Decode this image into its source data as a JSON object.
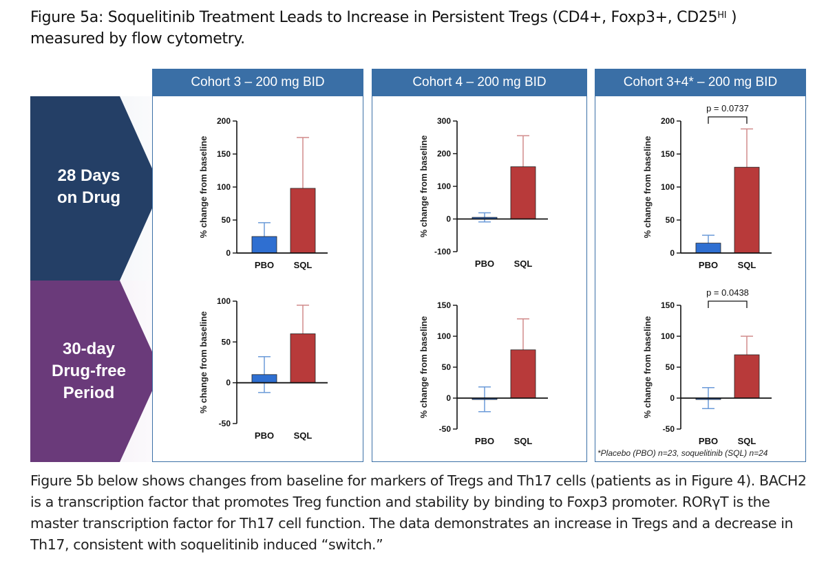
{
  "figure": {
    "title_main": "Figure 5a: Soquelitinib Treatment Leads to Increase in Persistent Tregs (CD4+, Foxp3+, CD25",
    "title_sup": "HI",
    "title_close": " )",
    "title_line2": "measured by flow cytometry."
  },
  "columns": [
    {
      "label": "Cohort 3 – 200 mg BID"
    },
    {
      "label": "Cohort 4 – 200 mg BID"
    },
    {
      "label": "Cohort 3+4* – 200 mg BID"
    }
  ],
  "rows": [
    {
      "label_lines": [
        "28 Days",
        "on Drug"
      ],
      "color": "#243f66"
    },
    {
      "label_lines": [
        "30-day",
        "Drug-free",
        "Period"
      ],
      "color": "#6a3a7a"
    }
  ],
  "colors": {
    "pbo": "#2f6fd1",
    "sql": "#b83a3a",
    "pbo_err": "#6a9ad8",
    "sql_err": "#d08a8a",
    "header": "#3a6fa6"
  },
  "footnote": "*Placebo (PBO) n=23, soquelitinib (SQL) n=24",
  "caption": "Figure 5b below shows changes from baseline for markers of Tregs and Th17 cells (patients as in Figure 4). BACH2 is a transcription factor that promotes Treg function and stability by binding to Foxp3 promoter. RORγT is the master transcription factor for Th17 cell function. The data demonstrates an increase in Tregs and a decrease in Th17, consistent with soquelitinib induced “switch.”",
  "chart_data": [
    {
      "type": "bar",
      "panel": "Cohort 3 – 28 Days on Drug",
      "categories": [
        "PBO",
        "SQL"
      ],
      "values": [
        25,
        98
      ],
      "errors": [
        21,
        77
      ],
      "ylabel": "% change from baseline",
      "ylim": [
        0,
        200
      ],
      "yticks": [
        0,
        50,
        100,
        150,
        200
      ],
      "p_value": ""
    },
    {
      "type": "bar",
      "panel": "Cohort 4 – 28 Days on Drug",
      "categories": [
        "PBO",
        "SQL"
      ],
      "values": [
        5,
        160
      ],
      "errors": [
        14,
        95
      ],
      "ylabel": "% change from baseline",
      "ylim": [
        -100,
        300
      ],
      "yticks": [
        -100,
        0,
        100,
        200,
        300
      ],
      "p_value": ""
    },
    {
      "type": "bar",
      "panel": "Cohort 3+4* – 28 Days on Drug",
      "categories": [
        "PBO",
        "SQL"
      ],
      "values": [
        15,
        130
      ],
      "errors": [
        12,
        58
      ],
      "ylabel": "% change from baseline",
      "ylim": [
        0,
        200
      ],
      "yticks": [
        0,
        50,
        100,
        150,
        200
      ],
      "p_value": "p = 0.0737"
    },
    {
      "type": "bar",
      "panel": "Cohort 3 – 30-day Drug-free Period",
      "categories": [
        "PBO",
        "SQL"
      ],
      "values": [
        10,
        60
      ],
      "errors": [
        22,
        35
      ],
      "ylabel": "% change from baseline",
      "ylim": [
        -50,
        100
      ],
      "yticks": [
        -50,
        0,
        50,
        100
      ],
      "p_value": ""
    },
    {
      "type": "bar",
      "panel": "Cohort 4 – 30-day Drug-free Period",
      "categories": [
        "PBO",
        "SQL"
      ],
      "values": [
        -2,
        78
      ],
      "errors": [
        20,
        50
      ],
      "ylabel": "% change from baseline",
      "ylim": [
        -50,
        150
      ],
      "yticks": [
        -50,
        0,
        50,
        100,
        150
      ],
      "p_value": ""
    },
    {
      "type": "bar",
      "panel": "Cohort 3+4* – 30-day Drug-free Period",
      "categories": [
        "PBO",
        "SQL"
      ],
      "values": [
        0,
        70
      ],
      "errors": [
        17,
        30
      ],
      "ylabel": "% change from baseline",
      "ylim": [
        -50,
        150
      ],
      "yticks": [
        -50,
        0,
        50,
        100,
        150
      ],
      "p_value": "p = 0.0438"
    }
  ]
}
